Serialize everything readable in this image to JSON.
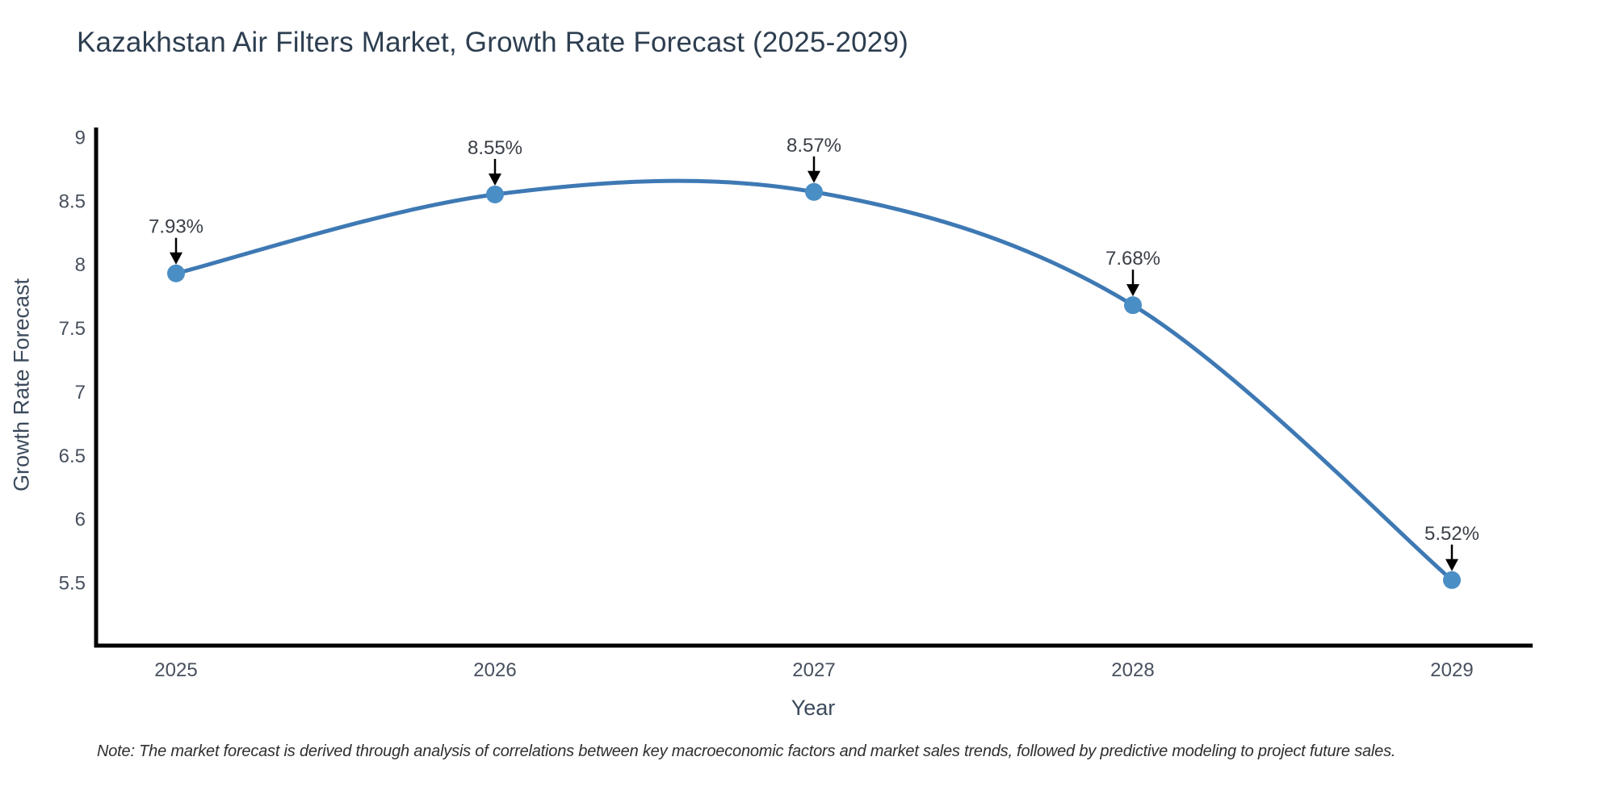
{
  "title": "Kazakhstan Air Filters Market, Growth Rate Forecast (2025-2029)",
  "note": "Note: The market forecast is derived through analysis of correlations between key macroeconomic factors and market sales trends, followed by predictive modeling to project future sales.",
  "chart_data": {
    "type": "line",
    "title": "Kazakhstan Air Filters Market, Growth Rate Forecast (2025-2029)",
    "x": [
      2025,
      2026,
      2027,
      2028,
      2029
    ],
    "values": [
      7.93,
      8.55,
      8.57,
      7.68,
      5.52
    ],
    "point_labels": [
      "7.93%",
      "8.55%",
      "8.57%",
      "7.68%",
      "5.52%"
    ],
    "xlabel": "Year",
    "ylabel": "Growth Rate Forecast",
    "yticks": [
      9,
      8.5,
      8,
      7.5,
      7,
      6.5,
      6,
      5.5
    ],
    "ylim": [
      5.0,
      9.1
    ],
    "grid": false,
    "legend": false,
    "line_shape": "spline",
    "annotations": "arrow-down-to-point",
    "colors": {
      "line": "#3e79b4",
      "marker": "#4a8ec6",
      "axis": "#000000",
      "tick_label": "#47505e",
      "annotation_text": "#3a3f47",
      "annotation_arrow": "#000000",
      "title": "#2d3e50",
      "axis_title": "#3c4a5c",
      "note": "#2f2f2f",
      "background": "#ffffff"
    }
  }
}
